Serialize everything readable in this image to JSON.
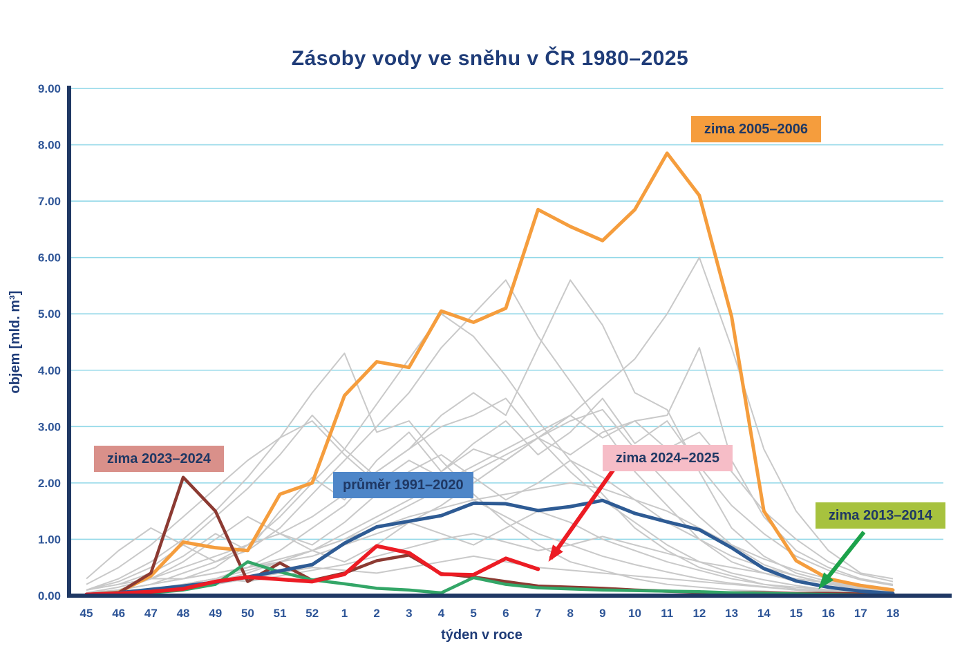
{
  "chart_data": {
    "type": "line",
    "title": "Zásoby vody ve sněhu v ČR 1980–2025",
    "xlabel": "týden v roce",
    "ylabel": "objem [mld. m³]",
    "ylim": [
      0,
      9
    ],
    "grid": true,
    "y_tick_labels": [
      "0.00",
      "1.00",
      "2.00",
      "3.00",
      "4.00",
      "5.00",
      "6.00",
      "7.00",
      "8.00",
      "9.00"
    ],
    "x_labels": [
      "45",
      "46",
      "47",
      "48",
      "49",
      "50",
      "51",
      "52",
      "1",
      "2",
      "3",
      "4",
      "5",
      "6",
      "7",
      "8",
      "9",
      "10",
      "11",
      "12",
      "13",
      "14",
      "15",
      "16",
      "17",
      "18"
    ],
    "colors": {
      "grid": "#92d8e8",
      "axis": "#1f3864",
      "tick_text": "#2e5597",
      "gray_series": "#c9c9c9"
    },
    "series": [
      {
        "name": "zima 2005–2006",
        "color": "#f59d3d",
        "width": 5,
        "values": [
          0.02,
          0.06,
          0.35,
          0.95,
          0.85,
          0.8,
          1.8,
          2.0,
          3.55,
          4.15,
          4.05,
          5.05,
          4.85,
          5.1,
          6.85,
          6.55,
          6.3,
          6.85,
          7.85,
          7.1,
          4.95,
          1.5,
          0.62,
          0.3,
          0.18,
          0.1
        ]
      },
      {
        "name": "zima 2023–2024",
        "color": "#8c3a32",
        "width": 4.5,
        "values": [
          0.02,
          0.05,
          0.4,
          2.1,
          1.5,
          0.25,
          0.58,
          0.27,
          0.4,
          0.62,
          0.72,
          0.39,
          0.33,
          0.25,
          0.17,
          0.15,
          0.13,
          0.1,
          0.08,
          0.06,
          0.05,
          0.05,
          0.04,
          0.04,
          0.03,
          0.02
        ]
      },
      {
        "name": "zima 2013–2014",
        "color": "#33a667",
        "width": 4.5,
        "values": [
          0.02,
          0.03,
          0.05,
          0.1,
          0.2,
          0.6,
          0.42,
          0.28,
          0.21,
          0.13,
          0.1,
          0.05,
          0.32,
          0.2,
          0.14,
          0.12,
          0.1,
          0.09,
          0.08,
          0.07,
          0.05,
          0.04,
          0.03,
          0.02,
          0.01,
          0.01
        ]
      },
      {
        "name": "průměr 1991–2020",
        "color": "#2e5b94",
        "width": 5,
        "values": [
          0.02,
          0.05,
          0.11,
          0.17,
          0.24,
          0.33,
          0.44,
          0.55,
          0.93,
          1.22,
          1.32,
          1.42,
          1.64,
          1.63,
          1.51,
          1.58,
          1.69,
          1.46,
          1.31,
          1.17,
          0.85,
          0.48,
          0.26,
          0.15,
          0.08,
          0.04
        ]
      },
      {
        "name": "zima 2024–2025",
        "color": "#ec1c24",
        "width": 5.5,
        "values": [
          0.02,
          0.04,
          0.07,
          0.12,
          0.25,
          0.33,
          0.29,
          0.25,
          0.38,
          0.88,
          0.76,
          0.38,
          0.37,
          0.66,
          0.47,
          null,
          null,
          null,
          null,
          null,
          null,
          null,
          null,
          null,
          null,
          null
        ]
      }
    ],
    "background_series": [
      {
        "name": "gray-01",
        "values": [
          0.1,
          0.2,
          0.3,
          0.3,
          0.4,
          0.5,
          0.6,
          0.7,
          0.9,
          1.1,
          1.3,
          1.6,
          2.0,
          2.4,
          2.8,
          3.2,
          3.7,
          4.2,
          5.0,
          6.0,
          4.4,
          2.6,
          1.5,
          0.8,
          0.4,
          0.3
        ]
      },
      {
        "name": "gray-02",
        "values": [
          0.05,
          0.1,
          0.2,
          0.4,
          0.6,
          0.8,
          1.2,
          1.8,
          2.4,
          3.0,
          3.6,
          4.4,
          5.0,
          5.6,
          4.6,
          3.8,
          3.0,
          2.2,
          1.6,
          1.0,
          0.6,
          0.4,
          0.25,
          0.15,
          0.1,
          0.05
        ]
      },
      {
        "name": "gray-03",
        "values": [
          0.0,
          0.05,
          0.1,
          0.2,
          0.3,
          0.5,
          0.8,
          1.2,
          1.6,
          2.2,
          2.6,
          3.2,
          3.6,
          3.2,
          4.4,
          5.6,
          4.8,
          3.6,
          3.3,
          2.2,
          1.2,
          0.7,
          0.4,
          0.25,
          0.15,
          0.1
        ]
      },
      {
        "name": "gray-04",
        "values": [
          0.1,
          0.3,
          0.6,
          1.0,
          1.5,
          2.1,
          2.8,
          3.6,
          4.3,
          2.9,
          3.1,
          2.4,
          1.8,
          1.3,
          0.9,
          0.6,
          0.45,
          0.3,
          0.2,
          0.15,
          0.1,
          0.08,
          0.05,
          0.04,
          0.03,
          0.02
        ]
      },
      {
        "name": "gray-05",
        "values": [
          0.0,
          0.1,
          0.2,
          0.3,
          0.5,
          0.9,
          1.4,
          2.0,
          2.6,
          3.4,
          4.2,
          5.0,
          4.6,
          3.9,
          3.1,
          2.4,
          1.8,
          1.2,
          0.8,
          0.5,
          0.35,
          0.2,
          0.12,
          0.08,
          0.05,
          0.03
        ]
      },
      {
        "name": "gray-06",
        "values": [
          0.05,
          0.15,
          0.3,
          0.5,
          0.7,
          0.9,
          1.1,
          1.4,
          1.8,
          2.2,
          2.6,
          3.0,
          3.2,
          3.5,
          2.8,
          2.2,
          1.7,
          1.3,
          0.9,
          0.6,
          0.4,
          0.28,
          0.18,
          0.1,
          0.06,
          0.04
        ]
      },
      {
        "name": "gray-07",
        "values": [
          0.1,
          0.25,
          0.5,
          0.9,
          1.4,
          1.9,
          2.5,
          3.2,
          2.6,
          2.1,
          1.8,
          2.2,
          2.6,
          2.4,
          2.8,
          3.1,
          3.3,
          2.6,
          2.0,
          1.4,
          0.9,
          0.55,
          0.35,
          0.2,
          0.12,
          0.08
        ]
      },
      {
        "name": "gray-08",
        "values": [
          0.0,
          0.05,
          0.1,
          0.15,
          0.25,
          0.4,
          0.6,
          0.8,
          1.1,
          1.4,
          1.7,
          2.0,
          2.3,
          2.6,
          2.9,
          3.2,
          2.8,
          3.1,
          3.2,
          4.4,
          2.4,
          1.4,
          0.8,
          0.5,
          0.3,
          0.2
        ]
      },
      {
        "name": "gray-09",
        "values": [
          0.05,
          0.1,
          0.2,
          0.3,
          0.4,
          0.5,
          0.65,
          0.8,
          1.0,
          1.2,
          1.4,
          1.55,
          1.7,
          1.8,
          1.9,
          2.0,
          1.9,
          1.7,
          1.5,
          1.2,
          0.9,
          0.65,
          0.45,
          0.3,
          0.2,
          0.12
        ]
      },
      {
        "name": "gray-10",
        "values": [
          0.3,
          0.8,
          1.2,
          0.9,
          0.6,
          0.9,
          1.1,
          0.8,
          0.6,
          0.9,
          1.3,
          1.1,
          0.9,
          1.2,
          1.5,
          1.3,
          1.0,
          0.8,
          0.6,
          0.45,
          0.3,
          0.2,
          0.15,
          0.1,
          0.06,
          0.04
        ]
      },
      {
        "name": "gray-11",
        "values": [
          0.0,
          0.1,
          0.3,
          0.6,
          1.0,
          1.4,
          1.1,
          0.9,
          1.3,
          1.8,
          2.2,
          2.5,
          2.1,
          1.7,
          2.0,
          2.4,
          2.1,
          1.7,
          1.3,
          1.0,
          0.7,
          0.5,
          0.35,
          0.22,
          0.14,
          0.08
        ]
      },
      {
        "name": "gray-12",
        "values": [
          0.02,
          0.05,
          0.1,
          0.15,
          0.2,
          0.3,
          0.4,
          0.5,
          0.45,
          0.4,
          0.5,
          0.6,
          0.7,
          0.6,
          0.5,
          0.45,
          0.4,
          0.35,
          0.3,
          0.25,
          0.2,
          0.15,
          0.1,
          0.07,
          0.05,
          0.03
        ]
      },
      {
        "name": "gray-13",
        "values": [
          0.1,
          0.2,
          0.4,
          0.7,
          1.1,
          0.8,
          1.5,
          2.1,
          1.7,
          2.4,
          2.9,
          2.2,
          2.7,
          3.1,
          2.5,
          2.9,
          3.5,
          2.7,
          3.1,
          2.3,
          1.6,
          1.1,
          0.7,
          0.45,
          0.28,
          0.18
        ]
      },
      {
        "name": "gray-14",
        "values": [
          0.0,
          0.05,
          0.1,
          0.2,
          0.3,
          0.45,
          0.6,
          0.8,
          1.0,
          1.3,
          1.6,
          1.9,
          2.2,
          2.5,
          2.8,
          2.5,
          2.9,
          3.1,
          2.6,
          2.9,
          2.2,
          1.5,
          1.0,
          0.6,
          0.38,
          0.25
        ]
      },
      {
        "name": "gray-15",
        "values": [
          0.05,
          0.08,
          0.12,
          0.2,
          0.3,
          0.25,
          0.35,
          0.45,
          0.55,
          0.7,
          0.85,
          1.0,
          1.1,
          0.95,
          0.8,
          0.9,
          1.05,
          0.9,
          0.75,
          0.6,
          0.5,
          0.4,
          0.3,
          0.22,
          0.15,
          0.1
        ]
      },
      {
        "name": "gray-16",
        "values": [
          0.2,
          0.5,
          0.9,
          1.4,
          1.9,
          2.4,
          2.8,
          3.1,
          2.5,
          2.0,
          2.4,
          2.1,
          1.7,
          1.4,
          1.1,
          0.9,
          0.7,
          0.55,
          0.42,
          0.3,
          0.22,
          0.16,
          0.1,
          0.07,
          0.05,
          0.03
        ]
      }
    ],
    "legend_position": "annotations-on-plot",
    "annotations": [
      {
        "label": "zima 2005–2006",
        "bg": "#f59d3d",
        "fg": "#1f3864"
      },
      {
        "label": "zima 2023–2024",
        "bg": "#d9908a",
        "fg": "#1f3864"
      },
      {
        "label": "průměr 1991–2020",
        "bg": "#4e86c8",
        "fg": "#1f3864"
      },
      {
        "label": "zima 2024–2025",
        "bg": "#f6bdc7",
        "fg": "#1f3864",
        "arrow_color": "#ec1c24"
      },
      {
        "label": "zima 2013–2014",
        "bg": "#a7c23e",
        "fg": "#1f3864",
        "arrow_color": "#1ca24a"
      }
    ]
  }
}
